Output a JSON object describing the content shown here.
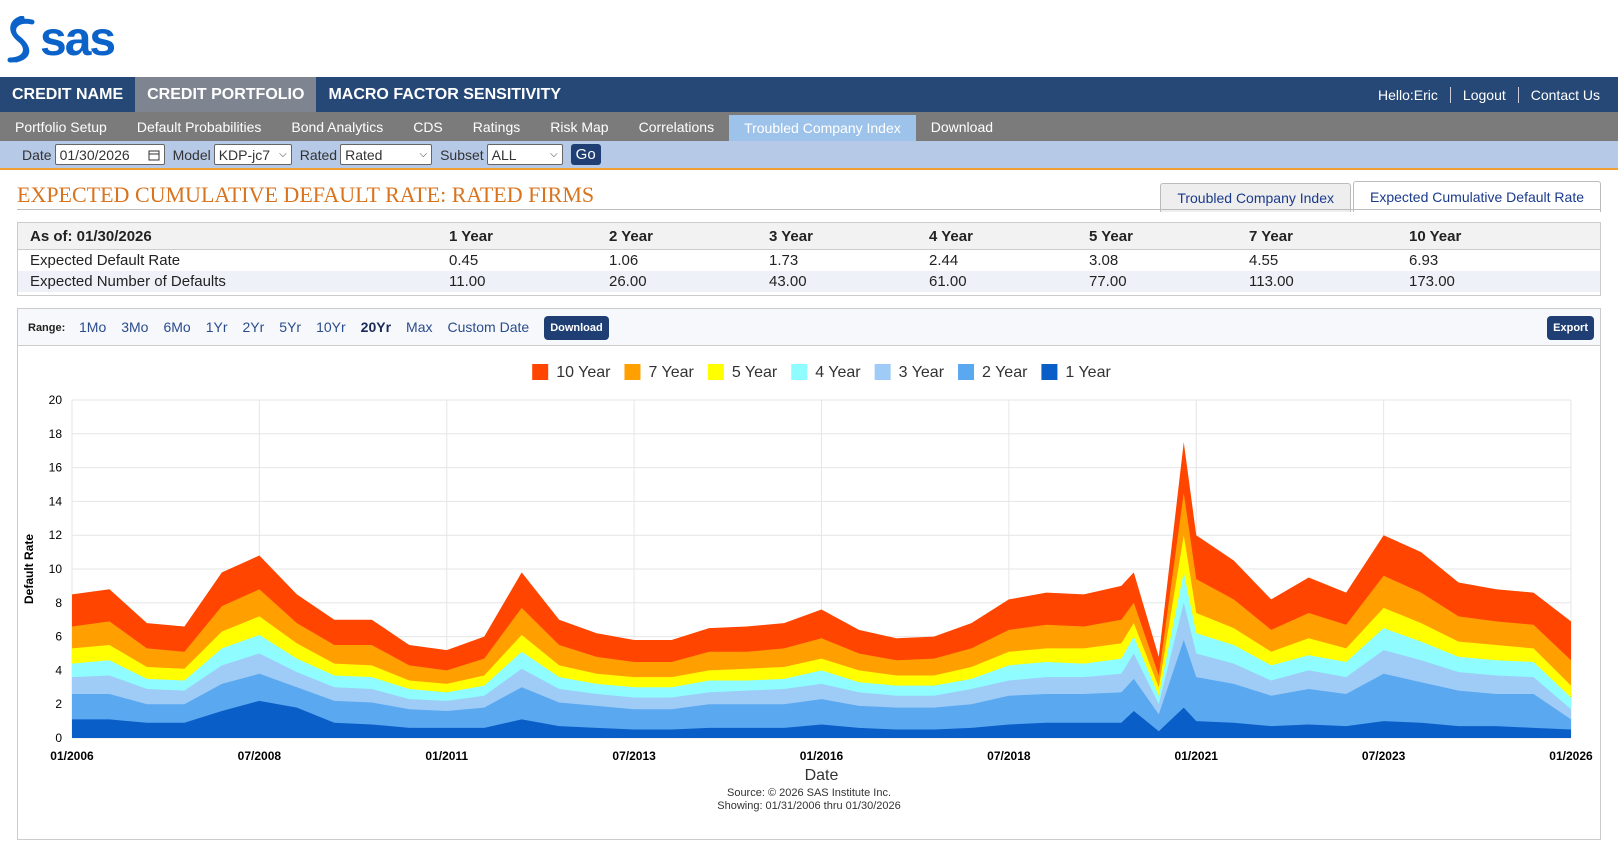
{
  "header": {
    "logo": "sas"
  },
  "top_nav": {
    "items": [
      "CREDIT NAME",
      "CREDIT PORTFOLIO",
      "MACRO FACTOR SENSITIVITY"
    ],
    "active": 1,
    "user_links": [
      "Hello:Eric",
      "Logout",
      "Contact Us"
    ]
  },
  "sub_nav": {
    "items": [
      "Portfolio Setup",
      "Default Probabilities",
      "Bond Analytics",
      "CDS",
      "Ratings",
      "Risk Map",
      "Correlations",
      "Troubled Company Index",
      "Download"
    ],
    "active": 7
  },
  "filters": {
    "date_label": "Date",
    "date": "01/30/2026",
    "model_label": "Model",
    "model": "KDP-jc7",
    "rated_label": "Rated",
    "rated": "Rated",
    "subset_label": "Subset",
    "subset": "ALL",
    "go": "Go"
  },
  "page": {
    "title": "EXPECTED CUMULATIVE DEFAULT RATE: RATED FIRMS",
    "tabs": [
      "Troubled Company Index",
      "Expected Cumulative Default Rate"
    ],
    "active_tab": 1
  },
  "table": {
    "header": [
      "As of: 01/30/2026",
      "1 Year",
      "2 Year",
      "3 Year",
      "4 Year",
      "5 Year",
      "7 Year",
      "10 Year"
    ],
    "rows": [
      [
        "Expected Default Rate",
        "0.45",
        "1.06",
        "1.73",
        "2.44",
        "3.08",
        "4.55",
        "6.93"
      ],
      [
        "Expected Number of Defaults",
        "11.00",
        "26.00",
        "43.00",
        "61.00",
        "77.00",
        "113.00",
        "173.00"
      ]
    ]
  },
  "range": {
    "label": "Range:",
    "options": [
      "1Mo",
      "3Mo",
      "6Mo",
      "1Yr",
      "2Yr",
      "5Yr",
      "10Yr",
      "20Yr",
      "Max",
      "Custom Date"
    ],
    "active": 7,
    "download": "Download",
    "export": "Export"
  },
  "chart_data": {
    "type": "area",
    "x_label": "Date",
    "y_label": "Default Rate",
    "grid": true,
    "x": [
      "2006-01",
      "2006-07",
      "2007-01",
      "2007-07",
      "2008-01",
      "2008-07",
      "2009-01",
      "2009-07",
      "2010-01",
      "2010-07",
      "2011-01",
      "2011-07",
      "2012-01",
      "2012-07",
      "2013-01",
      "2013-07",
      "2014-01",
      "2014-07",
      "2015-01",
      "2015-07",
      "2016-01",
      "2016-07",
      "2017-01",
      "2017-07",
      "2018-01",
      "2018-07",
      "2019-01",
      "2019-07",
      "2020-01",
      "2020-03",
      "2020-07",
      "2020-11",
      "2021-01",
      "2021-07",
      "2022-01",
      "2022-07",
      "2023-01",
      "2023-07",
      "2024-01",
      "2024-07",
      "2025-01",
      "2025-07",
      "2026-01"
    ],
    "xlim": [
      "2006-01",
      "2026-01"
    ],
    "xticks": [
      {
        "value": "2006-01",
        "label": "01/2006"
      },
      {
        "value": "2008-07",
        "label": "07/2008"
      },
      {
        "value": "2011-01",
        "label": "01/2011"
      },
      {
        "value": "2013-07",
        "label": "07/2013"
      },
      {
        "value": "2016-01",
        "label": "01/2016"
      },
      {
        "value": "2018-07",
        "label": "07/2018"
      },
      {
        "value": "2021-01",
        "label": "01/2021"
      },
      {
        "value": "2023-07",
        "label": "07/2023"
      },
      {
        "value": "2026-01",
        "label": "01/2026"
      }
    ],
    "ylim": [
      0,
      20
    ],
    "yticks": [
      0,
      2,
      4,
      6,
      8,
      10,
      12,
      14,
      16,
      18,
      20
    ],
    "series": [
      {
        "name": "10 Year",
        "color": "#ff4500",
        "values": [
          8.5,
          8.8,
          6.8,
          6.6,
          9.8,
          10.8,
          8.5,
          7.0,
          7.0,
          5.5,
          5.2,
          6.0,
          9.8,
          7.0,
          6.2,
          5.8,
          5.8,
          6.5,
          6.6,
          6.8,
          7.6,
          6.4,
          5.9,
          6.0,
          6.8,
          8.2,
          8.6,
          8.5,
          9.0,
          9.8,
          4.8,
          17.5,
          12.0,
          10.5,
          8.2,
          9.5,
          8.6,
          12.0,
          11.0,
          9.2,
          8.8,
          8.6,
          6.9
        ]
      },
      {
        "name": "7 Year",
        "color": "#ffa000",
        "values": [
          6.6,
          6.9,
          5.3,
          5.1,
          7.8,
          8.8,
          6.8,
          5.5,
          5.5,
          4.3,
          4.0,
          4.7,
          7.7,
          5.5,
          4.8,
          4.5,
          4.5,
          5.1,
          5.1,
          5.3,
          5.9,
          5.0,
          4.6,
          4.7,
          5.3,
          6.4,
          6.7,
          6.6,
          7.0,
          8.0,
          3.7,
          14.5,
          9.4,
          8.2,
          6.4,
          7.4,
          6.7,
          9.6,
          8.6,
          7.2,
          6.9,
          6.7,
          4.6
        ]
      },
      {
        "name": "5 Year",
        "color": "#ffff00",
        "values": [
          5.3,
          5.5,
          4.2,
          4.1,
          6.3,
          7.2,
          5.6,
          4.4,
          4.3,
          3.4,
          3.2,
          3.7,
          6.1,
          4.3,
          3.8,
          3.6,
          3.6,
          4.0,
          4.1,
          4.2,
          4.7,
          4.0,
          3.7,
          3.7,
          4.2,
          5.1,
          5.3,
          5.3,
          5.6,
          6.8,
          3.0,
          12.0,
          7.4,
          6.5,
          5.1,
          5.9,
          5.3,
          7.7,
          6.8,
          5.7,
          5.5,
          5.3,
          3.1
        ]
      },
      {
        "name": "4 Year",
        "color": "#8ffcff",
        "values": [
          4.4,
          4.6,
          3.5,
          3.4,
          5.3,
          6.1,
          4.7,
          3.7,
          3.6,
          2.9,
          2.7,
          3.1,
          5.1,
          3.6,
          3.2,
          3.0,
          3.0,
          3.4,
          3.4,
          3.5,
          4.0,
          3.3,
          3.1,
          3.1,
          3.5,
          4.3,
          4.5,
          4.4,
          4.7,
          6.0,
          2.5,
          9.8,
          6.2,
          5.5,
          4.3,
          4.9,
          4.5,
          6.5,
          5.7,
          4.8,
          4.6,
          4.5,
          2.4
        ]
      },
      {
        "name": "3 Year",
        "color": "#9fcbf7",
        "values": [
          3.6,
          3.7,
          2.9,
          2.8,
          4.3,
          5.0,
          3.9,
          3.0,
          2.9,
          2.3,
          2.2,
          2.5,
          4.1,
          2.9,
          2.6,
          2.4,
          2.4,
          2.7,
          2.8,
          2.9,
          3.2,
          2.7,
          2.5,
          2.5,
          2.9,
          3.4,
          3.6,
          3.6,
          3.8,
          5.0,
          2.0,
          8.0,
          5.0,
          4.4,
          3.4,
          4.0,
          3.6,
          5.2,
          4.6,
          3.9,
          3.7,
          3.6,
          1.7
        ]
      },
      {
        "name": "2 Year",
        "color": "#5aa8f0",
        "values": [
          2.6,
          2.6,
          2.0,
          2.0,
          3.2,
          3.8,
          3.0,
          2.2,
          2.1,
          1.7,
          1.6,
          1.8,
          3.0,
          2.1,
          1.9,
          1.7,
          1.7,
          2.0,
          2.0,
          2.0,
          2.3,
          1.9,
          1.8,
          1.8,
          2.0,
          2.5,
          2.6,
          2.6,
          2.7,
          3.5,
          1.4,
          5.8,
          3.6,
          3.2,
          2.5,
          2.9,
          2.6,
          3.8,
          3.3,
          2.8,
          2.6,
          2.6,
          1.1
        ]
      },
      {
        "name": "1 Year",
        "color": "#0a5ec8",
        "values": [
          1.1,
          1.1,
          0.9,
          0.9,
          1.6,
          2.2,
          1.8,
          0.9,
          0.8,
          0.6,
          0.6,
          0.6,
          1.1,
          0.7,
          0.6,
          0.5,
          0.5,
          0.6,
          0.6,
          0.6,
          0.8,
          0.6,
          0.5,
          0.5,
          0.6,
          0.8,
          0.9,
          0.9,
          0.9,
          1.6,
          0.4,
          1.8,
          1.0,
          0.9,
          0.7,
          0.8,
          0.7,
          1.0,
          0.9,
          0.7,
          0.7,
          0.6,
          0.5
        ]
      }
    ],
    "source": "Source: © 2026 SAS Institute Inc.",
    "showing": "Showing: 01/31/2006 thru 01/30/2026"
  }
}
